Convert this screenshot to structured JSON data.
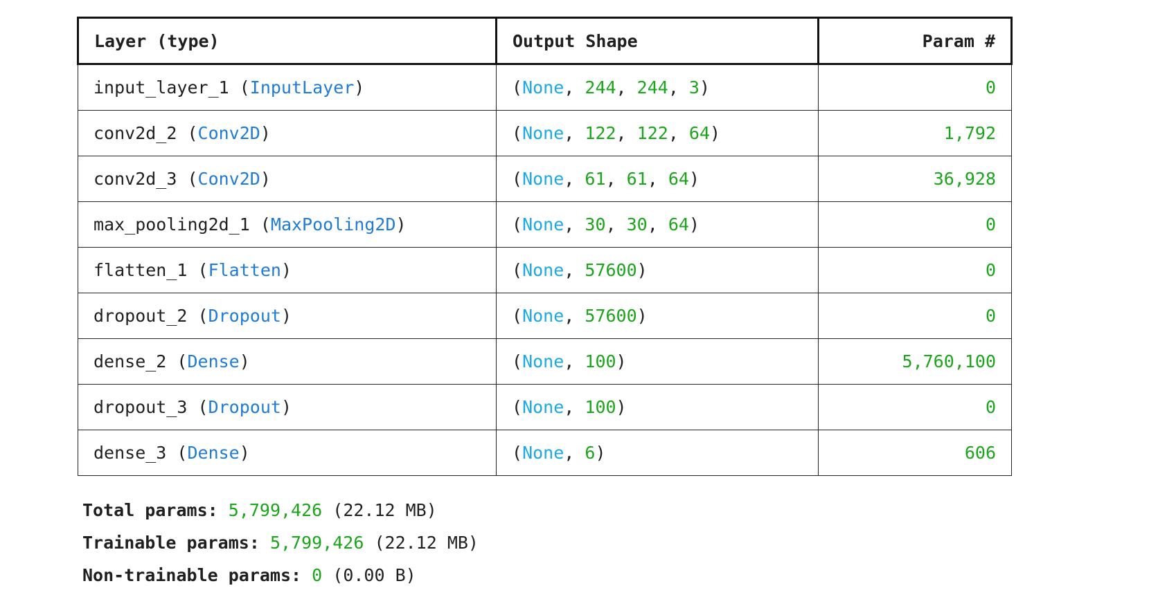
{
  "table": {
    "headers": [
      "Layer (type)",
      "Output Shape",
      "Param #"
    ],
    "rows": [
      {
        "layer": "input_layer_1",
        "type": "InputLayer",
        "shape": [
          "244",
          "244",
          "3"
        ],
        "params": "0"
      },
      {
        "layer": "conv2d_2",
        "type": "Conv2D",
        "shape": [
          "122",
          "122",
          "64"
        ],
        "params": "1,792"
      },
      {
        "layer": "conv2d_3",
        "type": "Conv2D",
        "shape": [
          "61",
          "61",
          "64"
        ],
        "params": "36,928"
      },
      {
        "layer": "max_pooling2d_1",
        "type": "MaxPooling2D",
        "shape": [
          "30",
          "30",
          "64"
        ],
        "params": "0"
      },
      {
        "layer": "flatten_1",
        "type": "Flatten",
        "shape": [
          "57600"
        ],
        "params": "0"
      },
      {
        "layer": "dropout_2",
        "type": "Dropout",
        "shape": [
          "57600"
        ],
        "params": "0"
      },
      {
        "layer": "dense_2",
        "type": "Dense",
        "shape": [
          "100"
        ],
        "params": "5,760,100"
      },
      {
        "layer": "dropout_3",
        "type": "Dropout",
        "shape": [
          "100"
        ],
        "params": "0"
      },
      {
        "layer": "dense_3",
        "type": "Dense",
        "shape": [
          "6"
        ],
        "params": "606"
      }
    ],
    "none_label": "None"
  },
  "totals": {
    "total": {
      "label": "Total params:",
      "value": "5,799,426",
      "size": "(22.12 MB)"
    },
    "trainable": {
      "label": "Trainable params:",
      "value": "5,799,426",
      "size": "(22.12 MB)"
    },
    "non_trainable": {
      "label": "Non-trainable params:",
      "value": "0",
      "size": "(0.00 B)"
    }
  },
  "colors": {
    "type_name": "#1f7bd8",
    "none_keyword": "#1aa9e6",
    "number": "#1aa51a",
    "text": "#1f1f1f",
    "border": "#222222"
  }
}
